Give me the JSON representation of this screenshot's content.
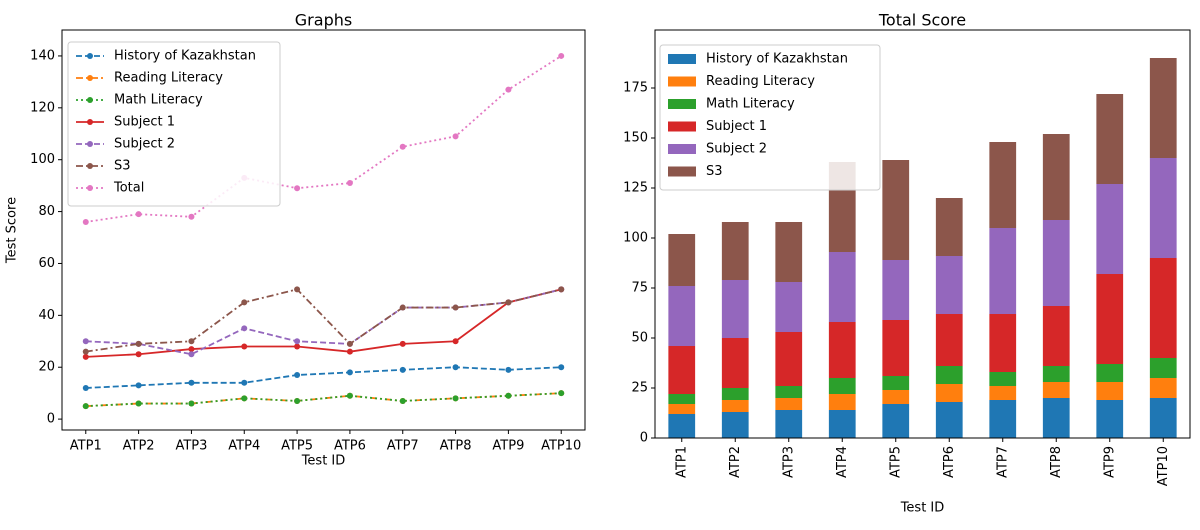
{
  "chart_data": [
    {
      "type": "line",
      "title": "Graphs",
      "xlabel": "Test ID",
      "ylabel": "Test Score",
      "categories": [
        "ATP1",
        "ATP2",
        "ATP3",
        "ATP4",
        "ATP5",
        "ATP6",
        "ATP7",
        "ATP8",
        "ATP9",
        "ATP10"
      ],
      "ylim": [
        -4.2,
        150
      ],
      "yticks": [
        0,
        20,
        40,
        60,
        80,
        100,
        120,
        140
      ],
      "legend": "upper left",
      "series": [
        {
          "name": "History of Kazakhstan",
          "color": "#1f77b4",
          "linestyle": "--",
          "values": [
            12,
            13,
            14,
            14,
            17,
            18,
            19,
            20,
            19,
            20
          ]
        },
        {
          "name": "Reading Literacy",
          "color": "#ff7f0e",
          "linestyle": "-.",
          "values": [
            5,
            6,
            6,
            8,
            7,
            9,
            7,
            8,
            9,
            10
          ]
        },
        {
          "name": "Math Literacy",
          "color": "#2ca02c",
          "linestyle": ":",
          "values": [
            5,
            6,
            6,
            8,
            7,
            9,
            7,
            8,
            9,
            10
          ]
        },
        {
          "name": "Subject 1",
          "color": "#d62728",
          "linestyle": "-",
          "values": [
            24,
            25,
            27,
            28,
            28,
            26,
            29,
            30,
            45,
            50
          ]
        },
        {
          "name": "Subject 2",
          "color": "#9467bd",
          "linestyle": "--",
          "values": [
            30,
            29,
            25,
            35,
            30,
            29,
            43,
            43,
            45,
            50
          ]
        },
        {
          "name": "S3",
          "color": "#8c564b",
          "linestyle": "-.",
          "values": [
            26,
            29,
            30,
            45,
            50,
            29,
            43,
            43,
            45,
            50
          ]
        },
        {
          "name": "Total",
          "color": "#e377c2",
          "linestyle": ":",
          "values": [
            76,
            79,
            78,
            93,
            89,
            91,
            105,
            109,
            127,
            140
          ]
        }
      ]
    },
    {
      "type": "bar",
      "stacked": true,
      "title": "Total Score",
      "xlabel": "Test ID",
      "categories": [
        "ATP1",
        "ATP2",
        "ATP3",
        "ATP4",
        "ATP5",
        "ATP6",
        "ATP7",
        "ATP8",
        "ATP9",
        "ATP10"
      ],
      "ylim": [
        0,
        204
      ],
      "yticks": [
        0,
        25,
        50,
        75,
        100,
        125,
        150,
        175
      ],
      "legend": "upper left",
      "series": [
        {
          "name": "History of Kazakhstan",
          "color": "#1f77b4",
          "values": [
            12,
            13,
            14,
            14,
            17,
            18,
            19,
            20,
            19,
            20
          ]
        },
        {
          "name": "Reading Literacy",
          "color": "#ff7f0e",
          "values": [
            5,
            6,
            6,
            8,
            7,
            9,
            7,
            8,
            9,
            10
          ]
        },
        {
          "name": "Math Literacy",
          "color": "#2ca02c",
          "values": [
            5,
            6,
            6,
            8,
            7,
            9,
            7,
            8,
            9,
            10
          ]
        },
        {
          "name": "Subject 1",
          "color": "#d62728",
          "values": [
            24,
            25,
            27,
            28,
            28,
            26,
            29,
            30,
            45,
            50
          ]
        },
        {
          "name": "Subject 2",
          "color": "#9467bd",
          "values": [
            30,
            29,
            25,
            35,
            30,
            29,
            43,
            43,
            45,
            50
          ]
        },
        {
          "name": "S3",
          "color": "#8c564b",
          "values": [
            26,
            29,
            30,
            45,
            50,
            29,
            43,
            43,
            45,
            50
          ]
        }
      ]
    }
  ]
}
